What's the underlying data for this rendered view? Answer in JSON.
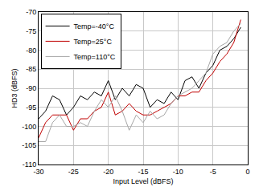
{
  "chart_data": {
    "type": "line",
    "x_label": "Input Level (dBFS)",
    "y_label": "HD3 (dBFS)",
    "x": [
      -30,
      -29,
      -28,
      -27,
      -26,
      -25,
      -24,
      -23,
      -22,
      -21,
      -20,
      -19,
      -18,
      -17,
      -16,
      -15,
      -14,
      -13,
      -12,
      -11,
      -10,
      -9,
      -8,
      -7,
      -6,
      -5,
      -4,
      -3,
      -2,
      -1
    ],
    "series": [
      {
        "name": "Temp=-40°C",
        "color": "#000000",
        "values": [
          -98,
          -96,
          -92,
          -93,
          -97,
          -95,
          -92,
          -93,
          -91,
          -92,
          -88,
          -93,
          -90,
          -92,
          -89,
          -90,
          -95,
          -93,
          -94,
          -91,
          -93,
          -88,
          -87,
          -90,
          -86,
          -84,
          -80,
          -79,
          -77,
          -74
        ]
      },
      {
        "name": "Temp=25°C",
        "color": "#c00000",
        "values": [
          -103,
          -99,
          -97,
          -97,
          -97,
          -101,
          -98,
          -98,
          -96,
          -95,
          -91,
          -97,
          -96,
          -94,
          -96,
          -97,
          -97,
          -96,
          -95,
          -94,
          -92,
          -92,
          -91,
          -91,
          -88,
          -86,
          -83,
          -81,
          -78,
          -72
        ]
      },
      {
        "name": "Temp=110°C",
        "color": "#a6a6a6",
        "values": [
          -104,
          -104,
          -99,
          -97,
          -100,
          -100,
          -99,
          -100,
          -96,
          -93,
          -95,
          -92,
          -96,
          -101,
          -97,
          -99,
          -96,
          -98,
          -97,
          -94,
          -92,
          -91,
          -90,
          -88,
          -86,
          -81,
          -79,
          -78,
          -75,
          -73
        ]
      }
    ],
    "xlim": [
      -30,
      0
    ],
    "xticks": [
      -30,
      -25,
      -20,
      -15,
      -10,
      -5,
      0
    ],
    "ylim": [
      -110,
      -70
    ],
    "yticks": [
      -110,
      -105,
      -100,
      -95,
      -90,
      -85,
      -80,
      -75,
      -70
    ],
    "grid": true,
    "legend": "top-left"
  }
}
